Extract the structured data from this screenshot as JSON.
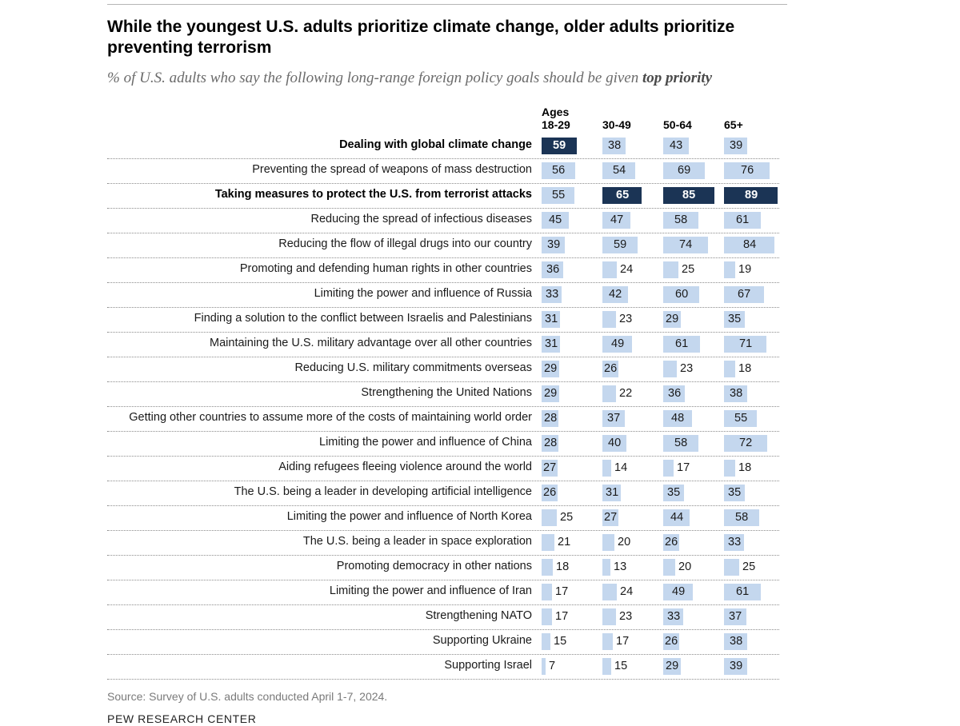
{
  "title": "While the youngest U.S. adults prioritize climate change, older adults prioritize preventing terrorism",
  "subtitle": {
    "text": "% of U.S. adults who say the following long-range foreign policy goals should be given",
    "emphasis": "top priority"
  },
  "source": "Source: Survey of U.S. adults conducted April 1-7, 2024.",
  "brand": "PEW RESEARCH CENTER",
  "colors": {
    "bar_light": "#c4d7ee",
    "bar_dark": "#1b3455",
    "highlight_text": "#ffffff"
  },
  "chart_data": {
    "type": "table",
    "title": "While the youngest U.S. adults prioritize climate change, older adults prioritize preventing terrorism",
    "subtitle": "% of U.S. adults who say the following long-range foreign policy goals should be given top priority",
    "column_prefix": "Ages",
    "columns": [
      "18-29",
      "30-49",
      "50-64",
      "65+"
    ],
    "value_max": 100,
    "rows": [
      {
        "label": "Dealing with global climate change",
        "values": [
          59,
          38,
          43,
          39
        ],
        "bold": true,
        "highlight": [
          true,
          false,
          false,
          false
        ]
      },
      {
        "label": "Preventing the spread of weapons of mass destruction",
        "values": [
          56,
          54,
          69,
          76
        ]
      },
      {
        "label": "Taking measures to protect the U.S. from terrorist attacks",
        "values": [
          55,
          65,
          85,
          89
        ],
        "bold": true,
        "highlight": [
          false,
          true,
          true,
          true
        ]
      },
      {
        "label": "Reducing the spread of infectious diseases",
        "values": [
          45,
          47,
          58,
          61
        ]
      },
      {
        "label": "Reducing the flow of illegal drugs into our country",
        "values": [
          39,
          59,
          74,
          84
        ]
      },
      {
        "label": "Promoting and defending human rights in other countries",
        "values": [
          36,
          24,
          25,
          19
        ]
      },
      {
        "label": "Limiting the power and influence of Russia",
        "values": [
          33,
          42,
          60,
          67
        ]
      },
      {
        "label": "Finding a solution to the conflict between Israelis and Palestinians",
        "values": [
          31,
          23,
          29,
          35
        ]
      },
      {
        "label": "Maintaining the U.S. military advantage over all other countries",
        "values": [
          31,
          49,
          61,
          71
        ]
      },
      {
        "label": "Reducing U.S. military commitments overseas",
        "values": [
          29,
          26,
          23,
          18
        ]
      },
      {
        "label": "Strengthening the United Nations",
        "values": [
          29,
          22,
          36,
          38
        ]
      },
      {
        "label": "Getting other countries to assume more of the costs of maintaining world order",
        "values": [
          28,
          37,
          48,
          55
        ]
      },
      {
        "label": "Limiting the power and influence of China",
        "values": [
          28,
          40,
          58,
          72
        ]
      },
      {
        "label": "Aiding refugees fleeing violence around the world",
        "values": [
          27,
          14,
          17,
          18
        ]
      },
      {
        "label": "The U.S. being a leader in developing artificial intelligence",
        "values": [
          26,
          31,
          35,
          35
        ]
      },
      {
        "label": "Limiting the power and influence of North Korea",
        "values": [
          25,
          27,
          44,
          58
        ]
      },
      {
        "label": "The U.S. being a leader in space exploration",
        "values": [
          21,
          20,
          26,
          33
        ]
      },
      {
        "label": "Promoting democracy in other nations",
        "values": [
          18,
          13,
          20,
          25
        ]
      },
      {
        "label": "Limiting the power and influence of Iran",
        "values": [
          17,
          24,
          49,
          61
        ]
      },
      {
        "label": "Strengthening NATO",
        "values": [
          17,
          23,
          33,
          37
        ]
      },
      {
        "label": "Supporting Ukraine",
        "values": [
          15,
          17,
          26,
          38
        ]
      },
      {
        "label": "Supporting Israel",
        "values": [
          7,
          15,
          29,
          39
        ]
      }
    ]
  }
}
